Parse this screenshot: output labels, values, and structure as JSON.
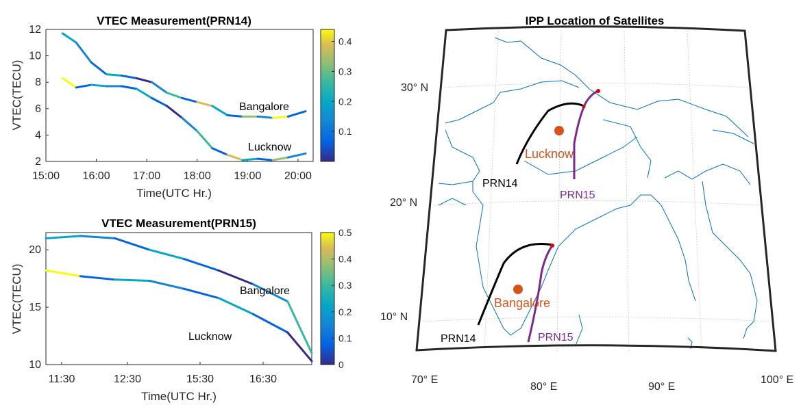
{
  "chart_data": [
    {
      "type": "line",
      "title": "VTEC Measurement(PRN14)",
      "xlabel": "Time(UTC Hr.)",
      "ylabel": "VTEC(TECU)",
      "xticks": [
        "15:00",
        "16:00",
        "17:00",
        "18:00",
        "19:00",
        "20:00"
      ],
      "yticks": [
        "2",
        "4",
        "6",
        "8",
        "10",
        "12"
      ],
      "ylim": [
        2,
        12
      ],
      "colorbar": {
        "ticks": [
          "0.1",
          "0.2",
          "0.3",
          "0.4"
        ],
        "range": [
          0,
          0.44
        ]
      },
      "x_hours": [
        15.33,
        15.6,
        15.9,
        16.2,
        16.5,
        16.8,
        17.1,
        17.4,
        17.7,
        18.0,
        18.3,
        18.6,
        18.9,
        19.2,
        19.5,
        19.8,
        20.15
      ],
      "series": [
        {
          "name": "Bangalore",
          "values": [
            11.7,
            11.0,
            9.5,
            8.6,
            8.5,
            8.3,
            8.0,
            7.2,
            6.8,
            6.5,
            6.2,
            5.5,
            5.4,
            5.4,
            5.3,
            5.4,
            5.8
          ]
        },
        {
          "name": "Lucknow",
          "values": [
            8.3,
            7.6,
            7.8,
            7.7,
            7.7,
            7.5,
            6.8,
            6.2,
            5.3,
            4.3,
            3.0,
            2.5,
            2.1,
            2.2,
            2.1,
            2.3,
            2.6
          ]
        }
      ]
    },
    {
      "type": "line",
      "title": "VTEC Measurement(PRN15)",
      "xlabel": "Time(UTC Hr.)",
      "ylabel": "VTEC(TECU)",
      "xticks": [
        "11:30",
        "12:30",
        "15:30",
        "16:30"
      ],
      "yticks": [
        "10",
        "15",
        "20"
      ],
      "ylim": [
        10,
        21.5
      ],
      "colorbar": {
        "ticks": [
          "0",
          "0.1",
          "0.2",
          "0.3",
          "0.4",
          "0.5"
        ],
        "range": [
          0,
          0.5
        ]
      },
      "x_index": [
        0,
        0.5,
        1,
        1.5,
        2,
        2.5,
        3,
        3.5,
        3.85
      ],
      "series": [
        {
          "name": "Bangalore",
          "values": [
            21.0,
            21.2,
            21.0,
            20.0,
            19.2,
            18.2,
            17.0,
            15.5,
            11.0
          ]
        },
        {
          "name": "Lucknow",
          "values": [
            18.2,
            17.7,
            17.4,
            17.3,
            16.6,
            15.8,
            14.4,
            12.8,
            10.3
          ]
        }
      ]
    }
  ],
  "map": {
    "title": "IPP Location of Satellites",
    "lat_labels": [
      "30° N",
      "20° N",
      "10° N"
    ],
    "lon_labels": [
      "70° E",
      "80° E",
      "90° E",
      "100° E"
    ],
    "cities": [
      "Lucknow",
      "Bangalore"
    ],
    "tracks": [
      "PRN14",
      "PRN15",
      "PRN14",
      "PRN15"
    ],
    "colors": {
      "prn14": "#000000",
      "prn15": "#7b2a8c",
      "city": "#d95319",
      "coast": "#0072bd"
    }
  }
}
